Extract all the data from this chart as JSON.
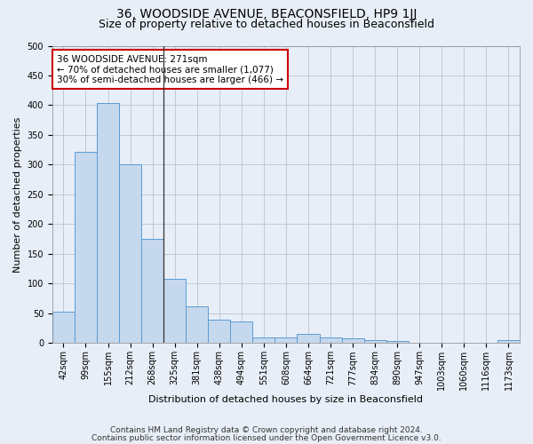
{
  "title1": "36, WOODSIDE AVENUE, BEACONSFIELD, HP9 1JJ",
  "title2": "Size of property relative to detached houses in Beaconsfield",
  "xlabel": "Distribution of detached houses by size in Beaconsfield",
  "ylabel": "Number of detached properties",
  "categories": [
    "42sqm",
    "99sqm",
    "155sqm",
    "212sqm",
    "268sqm",
    "325sqm",
    "381sqm",
    "438sqm",
    "494sqm",
    "551sqm",
    "608sqm",
    "664sqm",
    "721sqm",
    "777sqm",
    "834sqm",
    "890sqm",
    "947sqm",
    "1003sqm",
    "1060sqm",
    "1116sqm",
    "1173sqm"
  ],
  "values": [
    53,
    322,
    403,
    300,
    175,
    108,
    62,
    40,
    36,
    10,
    9,
    15,
    9,
    8,
    5,
    3,
    0,
    1,
    0,
    0,
    5
  ],
  "bar_color": "#c5d8ed",
  "bar_edge_color": "#5b9bd5",
  "subject_bar_index": 4,
  "annotation_text": "36 WOODSIDE AVENUE: 271sqm\n← 70% of detached houses are smaller (1,077)\n30% of semi-detached houses are larger (466) →",
  "annotation_box_color": "#ffffff",
  "annotation_box_edge": "#cc0000",
  "ylim": [
    0,
    500
  ],
  "yticks": [
    0,
    50,
    100,
    150,
    200,
    250,
    300,
    350,
    400,
    450,
    500
  ],
  "footer1": "Contains HM Land Registry data © Crown copyright and database right 2024.",
  "footer2": "Contains public sector information licensed under the Open Government Licence v3.0.",
  "bg_color": "#e8eef7",
  "plot_bg_color": "#e8eef7",
  "vline_color": "#333333",
  "grid_color": "#b8c4d4",
  "title1_fontsize": 10,
  "title2_fontsize": 9,
  "axis_label_fontsize": 8,
  "tick_fontsize": 7,
  "annotation_fontsize": 7.5,
  "footer_fontsize": 6.5
}
